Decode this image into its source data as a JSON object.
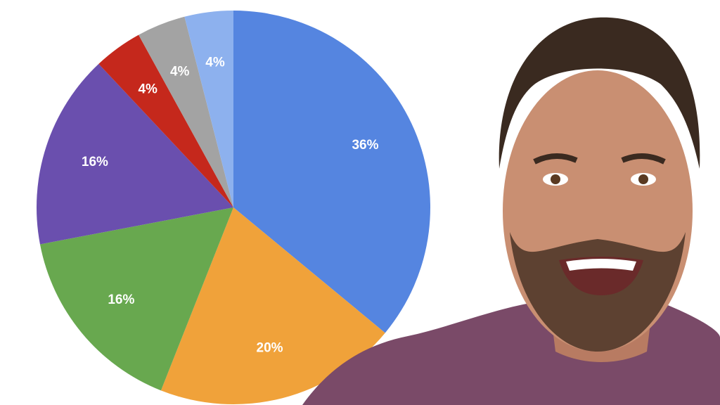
{
  "chart_data": {
    "type": "pie",
    "values": [
      36,
      20,
      16,
      16,
      4,
      4,
      4
    ],
    "value_labels": [
      "36%",
      "20%",
      "16%",
      "16%",
      "4%",
      "4%",
      "4%"
    ],
    "colors": [
      "#5585e0",
      "#f0a23a",
      "#68a84f",
      "#6a4fae",
      "#c5281c",
      "#a3a3a3",
      "#8db1ee"
    ]
  }
}
